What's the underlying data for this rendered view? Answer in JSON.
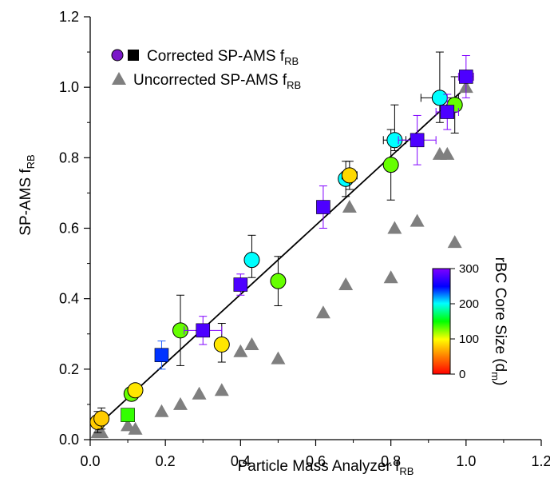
{
  "chart_data": {
    "type": "scatter",
    "xlabel": "Particle Mass Analyzer f",
    "xlabel_sub": "RB",
    "ylabel": "SP-AMS f",
    "ylabel_sub": "RB",
    "xlim": [
      0,
      1.2
    ],
    "ylim": [
      0,
      1.2
    ],
    "xticks": [
      "0.0",
      "0.2",
      "0.4",
      "0.6",
      "0.8",
      "1.0",
      "1.2"
    ],
    "yticks": [
      "0.0",
      "0.2",
      "0.4",
      "0.6",
      "0.8",
      "1.0",
      "1.2"
    ],
    "grid": false,
    "legend": {
      "position": "top-left",
      "corrected": "Corrected SP-AMS f",
      "uncorrected": "Uncorrected SP-AMS f",
      "sub": "RB"
    },
    "colorbar": {
      "label": "rBC Core Size (d",
      "label_sub": "m",
      "label_end": ")",
      "ticks": [
        "0",
        "100",
        "200",
        "300"
      ],
      "range": [
        0,
        300
      ],
      "colors": [
        "#ff0000",
        "#ff8000",
        "#ffff00",
        "#00ff00",
        "#00ffff",
        "#0000ff",
        "#8000ff"
      ]
    },
    "fit_line": {
      "x": [
        0.02,
        1.0
      ],
      "y": [
        0.04,
        1.0
      ],
      "color": "#000000"
    },
    "series": [
      {
        "name": "Uncorrected SP-AMS fRB",
        "marker": "triangle",
        "color": "#7f7f7f",
        "points": [
          [
            0.02,
            0.02
          ],
          [
            0.03,
            0.02
          ],
          [
            0.1,
            0.04
          ],
          [
            0.12,
            0.03
          ],
          [
            0.19,
            0.08
          ],
          [
            0.24,
            0.1
          ],
          [
            0.29,
            0.13
          ],
          [
            0.35,
            0.14
          ],
          [
            0.4,
            0.25
          ],
          [
            0.43,
            0.27
          ],
          [
            0.5,
            0.23
          ],
          [
            0.62,
            0.36
          ],
          [
            0.68,
            0.44
          ],
          [
            0.69,
            0.66
          ],
          [
            0.8,
            0.46
          ],
          [
            0.81,
            0.6
          ],
          [
            0.87,
            0.62
          ],
          [
            0.93,
            0.81
          ],
          [
            0.95,
            0.81
          ],
          [
            0.97,
            0.56
          ],
          [
            1.0,
            1.0
          ]
        ]
      },
      {
        "name": "Corrected SP-AMS fRB (circles)",
        "marker": "circle",
        "points": [
          {
            "x": 0.02,
            "y": 0.05,
            "size": 80,
            "yerr": [
              0.03,
              0.03
            ]
          },
          {
            "x": 0.03,
            "y": 0.06,
            "size": 80,
            "yerr": [
              0.03,
              0.03
            ]
          },
          {
            "x": 0.11,
            "y": 0.13,
            "size": 130
          },
          {
            "x": 0.12,
            "y": 0.14,
            "size": 90
          },
          {
            "x": 0.24,
            "y": 0.31,
            "size": 130,
            "yerr": [
              0.1,
              0.1
            ]
          },
          {
            "x": 0.35,
            "y": 0.27,
            "size": 90,
            "yerr": [
              0.05,
              0.06
            ]
          },
          {
            "x": 0.43,
            "y": 0.51,
            "size": 200,
            "yerr": [
              0.05,
              0.07
            ]
          },
          {
            "x": 0.5,
            "y": 0.45,
            "size": 130,
            "yerr": [
              0.07,
              0.07
            ]
          },
          {
            "x": 0.68,
            "y": 0.74,
            "size": 200,
            "yerr": [
              0.05,
              0.05
            ]
          },
          {
            "x": 0.69,
            "y": 0.75,
            "size": 85,
            "yerr": [
              0.04,
              0.04
            ],
            "xerr": [
              0.02,
              0.02
            ]
          },
          {
            "x": 0.8,
            "y": 0.78,
            "size": 130,
            "yerr": [
              0.1,
              0.1
            ]
          },
          {
            "x": 0.81,
            "y": 0.85,
            "size": 200,
            "yerr": [
              0.03,
              0.1
            ],
            "xerr": [
              0.03,
              0.03
            ]
          },
          {
            "x": 0.93,
            "y": 0.97,
            "size": 200,
            "yerr": [
              0.07,
              0.13
            ],
            "xerr": [
              0.05,
              0.05
            ]
          },
          {
            "x": 0.97,
            "y": 0.95,
            "size": 130,
            "yerr": [
              0.08,
              0.08
            ]
          }
        ]
      },
      {
        "name": "Corrected SP-AMS fRB (squares)",
        "marker": "square",
        "points": [
          {
            "x": 0.1,
            "y": 0.07,
            "size": 140
          },
          {
            "x": 0.19,
            "y": 0.24,
            "size": 240,
            "yerr": [
              0.04,
              0.04
            ],
            "errcolor": "#2060ff"
          },
          {
            "x": 0.3,
            "y": 0.31,
            "size": 280,
            "yerr": [
              0.04,
              0.04
            ],
            "xerr": [
              0.05,
              0.05
            ],
            "errcolor": "#8000ff"
          },
          {
            "x": 0.4,
            "y": 0.44,
            "size": 280,
            "yerr": [
              0.03,
              0.03
            ],
            "errcolor": "#8000ff"
          },
          {
            "x": 0.62,
            "y": 0.66,
            "size": 280,
            "yerr": [
              0.06,
              0.06
            ],
            "errcolor": "#8000ff"
          },
          {
            "x": 0.87,
            "y": 0.85,
            "size": 280,
            "yerr": [
              0.07,
              0.07
            ],
            "xerr": [
              0.05,
              0.05
            ],
            "errcolor": "#8000ff"
          },
          {
            "x": 0.95,
            "y": 0.93,
            "size": 280,
            "yerr": [
              0.05,
              0.05
            ],
            "xerr": [
              0.03,
              0.03
            ],
            "errcolor": "#8000ff"
          },
          {
            "x": 1.0,
            "y": 1.03,
            "size": 280,
            "yerr": [
              0.06,
              0.06
            ],
            "xerr": [
              0.02,
              0.02
            ],
            "errcolor": "#8000ff"
          }
        ]
      }
    ]
  }
}
